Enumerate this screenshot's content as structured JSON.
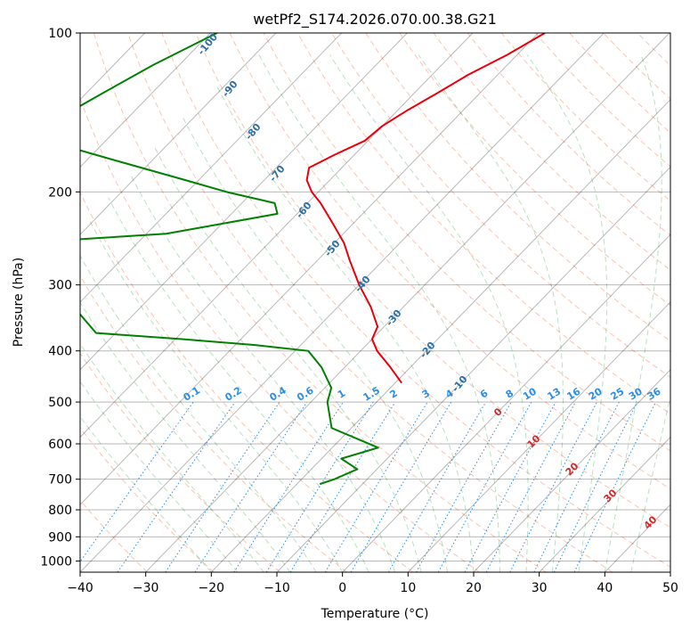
{
  "chart_data": {
    "type": "skew-t",
    "title": "wetPf2_S174.2026.070.00.38.G21",
    "xlabel": "Temperature (°C)",
    "ylabel": "Pressure (hPa)",
    "xlim": [
      -40,
      50
    ],
    "ylim": [
      1050,
      100
    ],
    "y_scale": "log",
    "grid": true,
    "x_ticks": [
      "−40",
      "−30",
      "−20",
      "−10",
      "0",
      "10",
      "20",
      "30",
      "40",
      "50"
    ],
    "y_ticks": [
      "100",
      "200",
      "300",
      "400",
      "500",
      "600",
      "700",
      "800",
      "900",
      "1000"
    ],
    "temperature_color": "#e8000b",
    "dewpoint_color": "#008000",
    "temperature_profile": [
      {
        "p": 100,
        "t": -49
      },
      {
        "p": 110,
        "t": -51.5
      },
      {
        "p": 120,
        "t": -54.5
      },
      {
        "p": 130,
        "t": -56.5
      },
      {
        "p": 140,
        "t": -58.5
      },
      {
        "p": 150,
        "t": -60
      },
      {
        "p": 160,
        "t": -60.5
      },
      {
        "p": 170,
        "t": -63
      },
      {
        "p": 180,
        "t": -65
      },
      {
        "p": 190,
        "t": -63.5
      },
      {
        "p": 200,
        "t": -61
      },
      {
        "p": 210,
        "t": -58
      },
      {
        "p": 230,
        "t": -53
      },
      {
        "p": 250,
        "t": -48.5
      },
      {
        "p": 270,
        "t": -45
      },
      {
        "p": 300,
        "t": -40
      },
      {
        "p": 330,
        "t": -35
      },
      {
        "p": 360,
        "t": -31
      },
      {
        "p": 380,
        "t": -30
      },
      {
        "p": 400,
        "t": -27.5
      },
      {
        "p": 430,
        "t": -23
      },
      {
        "p": 460,
        "t": -19
      }
    ],
    "dewpoint_profile": [
      {
        "p": 100,
        "t": -99
      },
      {
        "p": 115,
        "t": -104
      },
      {
        "p": 130,
        "t": -107.5
      },
      {
        "p": 145,
        "t": -110.5
      },
      {
        "p": 160,
        "t": -109
      },
      {
        "p": 175,
        "t": -95
      },
      {
        "p": 190,
        "t": -82
      },
      {
        "p": 200,
        "t": -74
      },
      {
        "p": 210,
        "t": -65
      },
      {
        "p": 220,
        "t": -63
      },
      {
        "p": 240,
        "t": -77
      },
      {
        "p": 250,
        "t": -98
      },
      {
        "p": 370,
        "t": -73
      },
      {
        "p": 380,
        "t": -59
      },
      {
        "p": 390,
        "t": -47
      },
      {
        "p": 400,
        "t": -38
      },
      {
        "p": 430,
        "t": -33.5
      },
      {
        "p": 470,
        "t": -29
      },
      {
        "p": 500,
        "t": -27.5
      },
      {
        "p": 560,
        "t": -23
      },
      {
        "p": 610,
        "t": -13
      },
      {
        "p": 640,
        "t": -17
      },
      {
        "p": 670,
        "t": -13
      },
      {
        "p": 700,
        "t": -15
      },
      {
        "p": 715,
        "t": -16.5
      }
    ],
    "dry_adiabat_labels": [
      "-100",
      "-90",
      "-80",
      "-70",
      "-60",
      "-50",
      "-40",
      "-30",
      "-20",
      "-10"
    ],
    "mixing_ratio_labels": [
      "0.1",
      "0.2",
      "0.4",
      "0.6",
      "1",
      "1.5",
      "2",
      "3",
      "4",
      "6",
      "8",
      "10",
      "13",
      "16",
      "20",
      "25",
      "30",
      "36"
    ],
    "moist_adiabat_labels": [
      "0",
      "10",
      "20",
      "30",
      "40"
    ]
  }
}
